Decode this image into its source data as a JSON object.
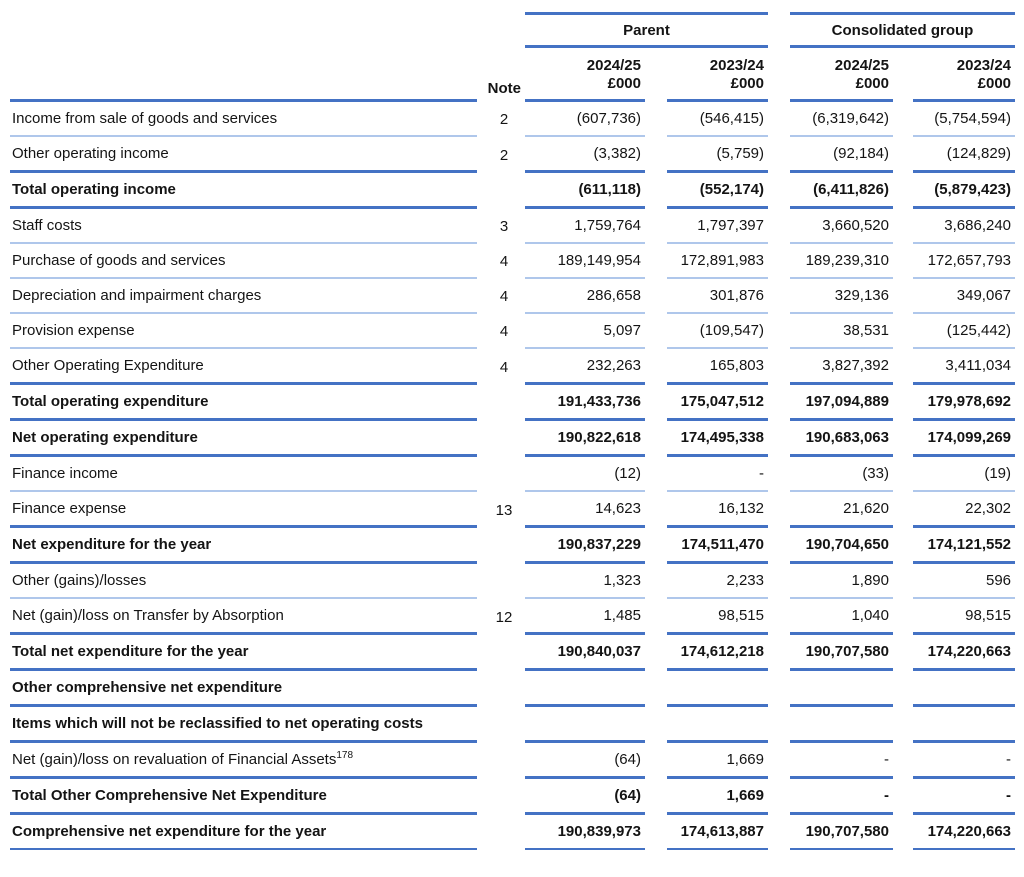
{
  "colors": {
    "accent_line": "#4472C4",
    "light_line": "#AFC7EB",
    "text": "#141414",
    "background": "#FFFFFF"
  },
  "table": {
    "groups": [
      {
        "label": "Parent"
      },
      {
        "label": "Consolidated group"
      }
    ],
    "note_header": "Note",
    "columns": [
      {
        "group": "Parent",
        "year": "2024/25",
        "unit": "£000"
      },
      {
        "group": "Parent",
        "year": "2023/24",
        "unit": "£000"
      },
      {
        "group": "Consolidated group",
        "year": "2024/25",
        "unit": "£000"
      },
      {
        "group": "Consolidated group",
        "year": "2023/24",
        "unit": "£000"
      }
    ],
    "rows": [
      {
        "label": "Income from sale of goods and services",
        "note": "2",
        "values": [
          "(607,736)",
          "(546,415)",
          "(6,319,642)",
          "(5,754,594)"
        ],
        "bold": false,
        "line": "thin"
      },
      {
        "label": "Other operating income",
        "note": "2",
        "values": [
          "(3,382)",
          "(5,759)",
          "(92,184)",
          "(124,829)"
        ],
        "bold": false,
        "line": "thick"
      },
      {
        "label": "Total operating income",
        "note": "",
        "values": [
          "(611,118)",
          "(552,174)",
          "(6,411,826)",
          "(5,879,423)"
        ],
        "bold": true,
        "line": "thick"
      },
      {
        "label": "Staff costs",
        "note": "3",
        "values": [
          "1,759,764",
          "1,797,397",
          "3,660,520",
          "3,686,240"
        ],
        "bold": false,
        "line": "thin"
      },
      {
        "label": "Purchase of goods and services",
        "note": "4",
        "values": [
          "189,149,954",
          "172,891,983",
          "189,239,310",
          "172,657,793"
        ],
        "bold": false,
        "line": "thin"
      },
      {
        "label": "Depreciation and impairment charges",
        "note": "4",
        "values": [
          "286,658",
          "301,876",
          "329,136",
          "349,067"
        ],
        "bold": false,
        "line": "thin"
      },
      {
        "label": "Provision expense",
        "note": "4",
        "values": [
          "5,097",
          "(109,547)",
          "38,531",
          "(125,442)"
        ],
        "bold": false,
        "line": "thin"
      },
      {
        "label": "Other Operating Expenditure",
        "note": "4",
        "values": [
          "232,263",
          "165,803",
          "3,827,392",
          "3,411,034"
        ],
        "bold": false,
        "line": "thick"
      },
      {
        "label": "Total operating expenditure",
        "note": "",
        "values": [
          "191,433,736",
          "175,047,512",
          "197,094,889",
          "179,978,692"
        ],
        "bold": true,
        "line": "thick"
      },
      {
        "label": "Net operating expenditure",
        "note": "",
        "values": [
          "190,822,618",
          "174,495,338",
          "190,683,063",
          "174,099,269"
        ],
        "bold": true,
        "line": "thick"
      },
      {
        "label": "Finance income",
        "note": "",
        "values": [
          "(12)",
          "-",
          "(33)",
          "(19)"
        ],
        "bold": false,
        "line": "thin"
      },
      {
        "label": "Finance expense",
        "note": "13",
        "values": [
          "14,623",
          "16,132",
          "21,620",
          "22,302"
        ],
        "bold": false,
        "line": "thick"
      },
      {
        "label": "Net expenditure for the year",
        "note": "",
        "values": [
          "190,837,229",
          "174,511,470",
          "190,704,650",
          "174,121,552"
        ],
        "bold": true,
        "line": "thick"
      },
      {
        "label": "Other (gains)/losses",
        "note": "",
        "values": [
          "1,323",
          "2,233",
          "1,890",
          "596"
        ],
        "bold": false,
        "line": "thin"
      },
      {
        "label": "Net (gain)/loss on Transfer by Absorption",
        "note": "12",
        "values": [
          "1,485",
          "98,515",
          "1,040",
          "98,515"
        ],
        "bold": false,
        "line": "thick"
      },
      {
        "label": "Total net expenditure for the year",
        "note": "",
        "values": [
          "190,840,037",
          "174,612,218",
          "190,707,580",
          "174,220,663"
        ],
        "bold": true,
        "line": "thick"
      },
      {
        "label": "Other comprehensive net expenditure",
        "note": "",
        "values": [
          "",
          "",
          "",
          ""
        ],
        "bold": true,
        "line": "thick"
      },
      {
        "label": "Items which will not be reclassified to net operating costs",
        "note": "",
        "values": [
          "",
          "",
          "",
          ""
        ],
        "bold": true,
        "line": "thick"
      },
      {
        "label": "Net (gain)/loss on revaluation of Financial Assets",
        "sup": "178",
        "note": "",
        "values": [
          "(64)",
          "1,669",
          "-",
          "-"
        ],
        "bold": false,
        "line": "thick"
      },
      {
        "label": "Total Other Comprehensive Net Expenditure",
        "note": "",
        "values": [
          "(64)",
          "1,669",
          "-",
          "-"
        ],
        "bold": true,
        "line": "thick"
      },
      {
        "label": "Comprehensive net expenditure for the year",
        "note": "",
        "values": [
          "190,839,973",
          "174,613,887",
          "190,707,580",
          "174,220,663"
        ],
        "bold": true,
        "line": "medium"
      }
    ]
  }
}
